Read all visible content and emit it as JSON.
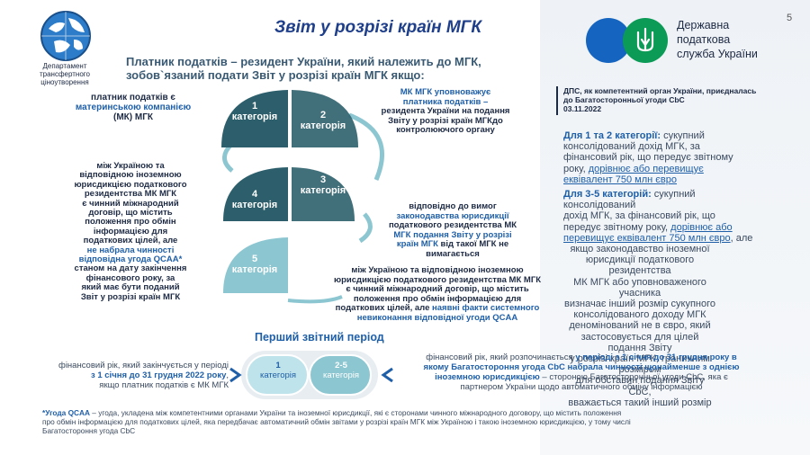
{
  "page_number": "5",
  "title": "Звіт у розрізі країн МГК",
  "dept_logo": {
    "line1": "Департамент",
    "line2": "трансфертного",
    "line3": "ціноутворення"
  },
  "tax_service_logo": {
    "line1": "Державна",
    "line2": "податкова",
    "line3": "служба України"
  },
  "subtitle": {
    "line1": "Платник податків – резидент України, який належить до МГК,",
    "line2": "зобов`язаний подати Звіт у розрізі країн МГК якщо:"
  },
  "categories": [
    {
      "num": "1",
      "label": "категорія"
    },
    {
      "num": "2",
      "label": "категорія"
    },
    {
      "num": "3",
      "label": "категорія"
    },
    {
      "num": "4",
      "label": "категорія"
    },
    {
      "num": "5",
      "label": "категорія"
    }
  ],
  "cat1_text": {
    "l1": "платник податків є",
    "l2": "материнською компанією",
    "l3": "(МК) МГК"
  },
  "cat2_text": {
    "l1": "МК МГК уповноважує",
    "l2": "платника податків –",
    "l3": "резидента України на подання",
    "l4": "Звіту у розрізі країн МГКдо",
    "l5": "контролюючого органу"
  },
  "cat3_text": {
    "l1": "відповідно до вимог",
    "l2": "законодавства юрисдикції",
    "l3": "податкового резидентства МК",
    "l4": "МГК подання Звіту у розрізі",
    "l5a": "країн МГК",
    "l5b": " від такої МГК не",
    "l6": "вимагається"
  },
  "cat4_text": {
    "l1": "між Україною та",
    "l2": "відповідною іноземною",
    "l3": "юрисдикцією податкового",
    "l4": "резидентства МК МГК",
    "l5": "є чинний міжнародний",
    "l6": "договір, що містить",
    "l7": "положення про обмін",
    "l8": "інформацією для",
    "l9": "податкових цілей, але",
    "l10": "не набрала чинності",
    "l11": "відповідна угода QCAA*",
    "l12": "станом на дату закінчення",
    "l13": "фінансового року, за",
    "l14": "який має бути поданий",
    "l15": "Звіт у розрізі країн МГК"
  },
  "cat5_text": {
    "l1": "між Україною та відповідною іноземною",
    "l2": "юрисдикцією податкового резидентства МК МГК",
    "l3": "є чинний міжнародний договір, що містить",
    "l4": "положення про обмін інформацією для",
    "l5a": "податкових цілей, але ",
    "l5b": "наявні факти системного",
    "l6": "невиконання відповідної угоди QCAA"
  },
  "dps_note": {
    "l1": "ДПС, як компетентний орган України, приєдналась",
    "l2": "до Багатосторонньої угоди CbC",
    "l3": "03.11.2022"
  },
  "cat12_threshold": {
    "head": "Для 1 та 2 категорії:",
    "l1": " сукупний",
    "l2": "консолідований дохід МГК, за",
    "l3": "фінансовий рік, що передує звітному",
    "l4a": "року, ",
    "l4b": "дорівнює або перевищує",
    "l5": "еквівалент 750 млн євро"
  },
  "cat35_threshold": {
    "head": "Для 3-5 категорій:",
    "l1": " сукупний",
    "l2": "консолідований",
    "l3": "дохід МГК, за фінансовий рік, що",
    "l4a": "передує звітному року, ",
    "l4b": "дорівнює або",
    "l5a": "перевищує еквівалент 750 млн євро",
    "l5b": ", але",
    "l6": "якщо законодавство іноземної",
    "l7": "юрисдикції податкового резидентства",
    "l8": "МК МГК або уповноваженого учасника",
    "l9": "визначає інший розмір сукупного",
    "l10": "консолідованого доходу МГК",
    "l11": "деномінований не в євро, який",
    "l12": "застосовується для цілей подання Звіту",
    "l13": "у розрізі країн МГК, граничним розміром",
    "l14": "для обставин подання Звіту CbC,",
    "l15": "вважається такий інший розмір"
  },
  "first_period": {
    "title": "Перший звітний період",
    "pill1": {
      "num": "1",
      "label": "категорія"
    },
    "pill2": {
      "num": "2-5",
      "label": "категорія"
    },
    "left": {
      "l1": "фінансовий рік, який закінчується у періоді",
      "l2": "з 1 січня  до 31 грудня 2022 року",
      "l2b": ",",
      "l3": "якщо платник податків є МК МГК"
    },
    "right": {
      "l1a": "фінансовий рік, який розпочинається ",
      "l1b": "у періоді з 1 січня до 31 грудня року в",
      "l2": "якому Багатостороння угода CbC набрала чинності щонайменше з однією",
      "l3a": "іноземною юрисдикцією",
      "l3b": " – стороною Багатосторонньої угоди CbC, яка є",
      "l4": "партнером України щодо автоматичного обміну інформацією"
    }
  },
  "footnote": {
    "head": "*Угода QCAA",
    "l1": " – угода, укладена між компетентними органами України та іноземної юрисдикції, які є сторонами чинного міжнародного договору, що містить положення",
    "l2": "про обмін інформацією для податкових цілей, яка передбачає автоматичний обмін звітами у розрізі країн МГК між Україною і такою іноземною юрисдикцією, у тому числі",
    "l3": "Багатостороння угода CbC"
  },
  "colors": {
    "dark_teal": "#2c5f6b",
    "light_teal": "#8cc6d1",
    "blue": "#1f5fa8",
    "navy": "#1d2a44",
    "logo_blue": "#1565c0",
    "logo_green": "#0b9b56"
  }
}
